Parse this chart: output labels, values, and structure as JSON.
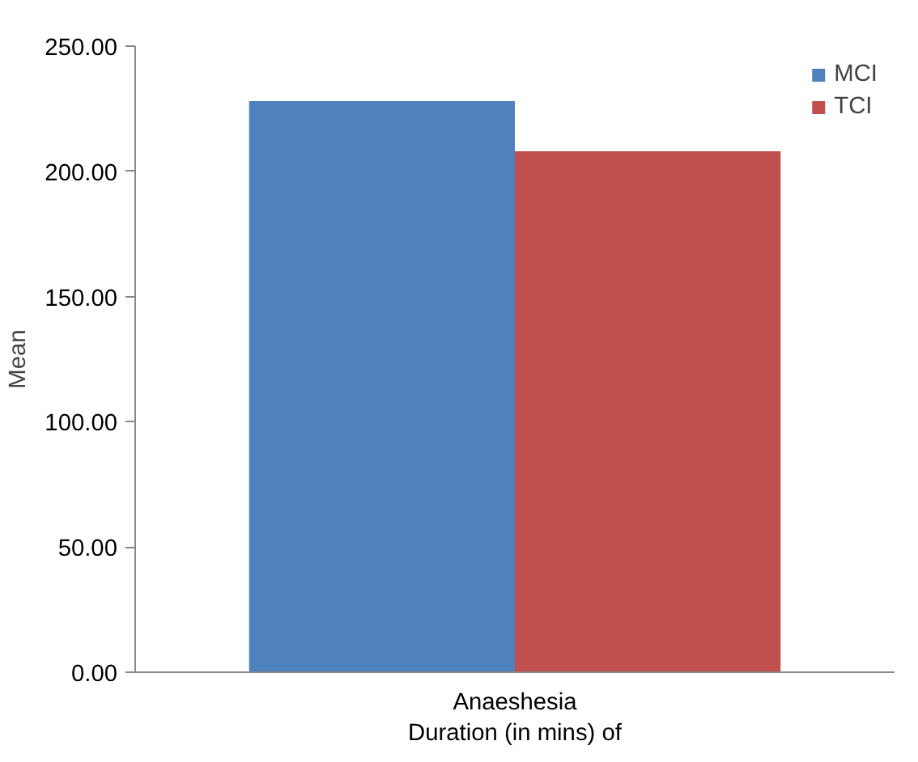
{
  "chart_data": {
    "type": "bar",
    "categories": [
      "Anaeshesia\nDuration (in mins) of"
    ],
    "ylabel": "Mean",
    "series": [
      {
        "name": "MCI",
        "color": "#4f81bd",
        "values": [
          228
        ]
      },
      {
        "name": "TCI",
        "color": "#c0504d",
        "values": [
          208
        ]
      }
    ],
    "ylim": [
      0,
      250
    ],
    "yticks": [
      {
        "value": 0,
        "label": "0.00"
      },
      {
        "value": 50,
        "label": "50.00"
      },
      {
        "value": 100,
        "label": "100.00"
      },
      {
        "value": 150,
        "label": "150.00"
      },
      {
        "value": 200,
        "label": "200.00"
      },
      {
        "value": 250,
        "label": "250.00"
      }
    ],
    "grid": false,
    "legend": "top right"
  }
}
